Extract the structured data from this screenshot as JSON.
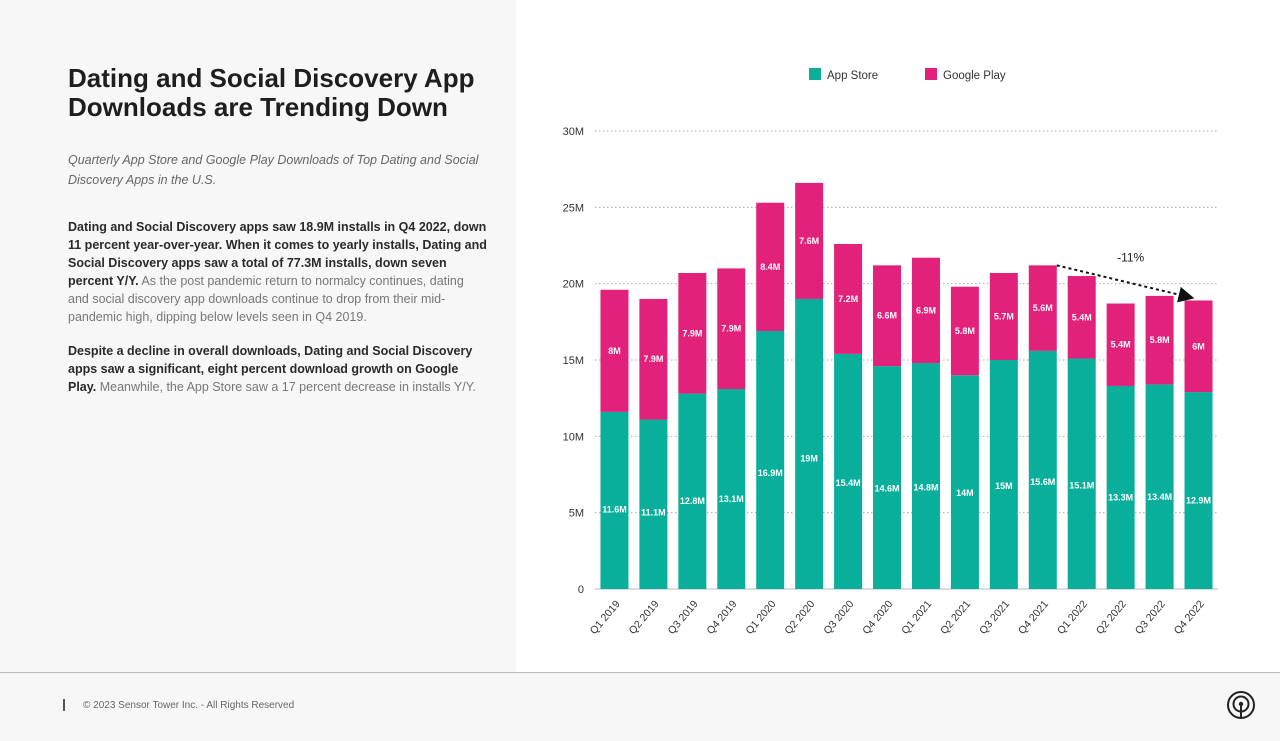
{
  "title": "Dating and Social Discovery App Downloads are Trending Down",
  "subtitle": "Quarterly App Store and Google Play Downloads of Top Dating and Social Discovery Apps in the U.S.",
  "paragraph1": {
    "bold": "Dating and Social Discovery apps saw 18.9M installs in Q4 2022, down 11 percent year-over-year. When it comes to yearly installs, Dating and Social Discovery apps saw a total of 77.3M installs, down seven percent Y/Y.",
    "regular": " As the post pandemic return to normalcy continues, dating and social discovery app downloads continue to drop from their mid-pandemic high, dipping below levels seen in Q4 2019."
  },
  "paragraph2": {
    "bold": "Despite a decline in overall downloads, Dating and Social Discovery apps saw a significant, eight percent download growth on Google Play.",
    "regular": " Meanwhile, the App Store saw a 17 percent decrease in installs Y/Y."
  },
  "footer": {
    "copyright": "© 2023 Sensor Tower Inc. - All Rights Reserved",
    "logo": "sensor-tower-logo"
  },
  "chart_data": {
    "type": "bar",
    "stacked": true,
    "categories": [
      "Q1 2019",
      "Q2 2019",
      "Q3 2019",
      "Q4 2019",
      "Q1 2020",
      "Q2 2020",
      "Q3 2020",
      "Q4 2020",
      "Q1 2021",
      "Q2 2021",
      "Q3 2021",
      "Q4 2021",
      "Q1 2022",
      "Q2 2022",
      "Q3 2022",
      "Q4 2022"
    ],
    "series": [
      {
        "name": "App Store",
        "color": "#0aaf9b",
        "values": [
          11.6,
          11.1,
          12.8,
          13.1,
          16.9,
          19,
          15.4,
          14.6,
          14.8,
          14,
          15,
          15.6,
          15.1,
          13.3,
          13.4,
          12.9
        ],
        "labels": [
          "11.6M",
          "11.1M",
          "12.8M",
          "13.1M",
          "16.9M",
          "19M",
          "15.4M",
          "14.6M",
          "14.8M",
          "14M",
          "15M",
          "15.6M",
          "15.1M",
          "13.3M",
          "13.4M",
          "12.9M"
        ]
      },
      {
        "name": "Google Play",
        "color": "#e2217a",
        "values": [
          8,
          7.9,
          7.9,
          7.9,
          8.4,
          7.6,
          7.2,
          6.6,
          6.9,
          5.8,
          5.7,
          5.6,
          5.4,
          5.4,
          5.8,
          6
        ],
        "labels": [
          "8M",
          "7.9M",
          "7.9M",
          "7.9M",
          "8.4M",
          "7.6M",
          "7.2M",
          "6.6M",
          "6.9M",
          "5.8M",
          "5.7M",
          "5.6M",
          "5.4M",
          "5.4M",
          "5.8M",
          "6M"
        ]
      }
    ],
    "ylim": [
      0,
      30
    ],
    "yticks": [
      0,
      5,
      10,
      15,
      20,
      25,
      30
    ],
    "ytick_labels": [
      "0",
      "5M",
      "10M",
      "15M",
      "20M",
      "25M",
      "30M"
    ],
    "grid": true,
    "legend": "top",
    "annotation": {
      "text": "-11%",
      "from": "Q4 2021",
      "to": "Q4 2022"
    }
  }
}
